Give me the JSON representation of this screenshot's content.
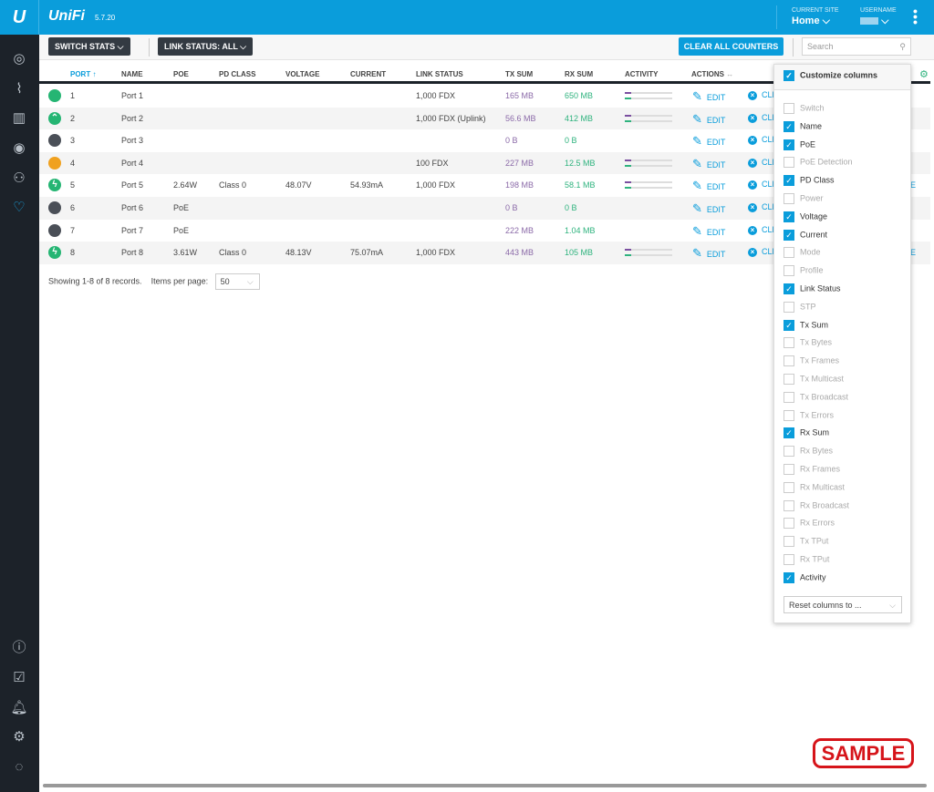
{
  "header": {
    "brand": "UniFi",
    "version": "5.7.20",
    "site_label": "CURRENT SITE",
    "site": "Home",
    "user_label": "USERNAME"
  },
  "sidebar": {
    "top": [
      "dashboard-icon",
      "statistics-icon",
      "map-icon",
      "devices-icon",
      "clients-icon",
      "insights-icon"
    ],
    "bottom": [
      "info-icon",
      "tasks-icon",
      "alerts-icon",
      "settings-icon",
      "chat-icon"
    ]
  },
  "toolbar": {
    "switch_stats": "SWITCH STATS",
    "link_status": "LINK STATUS: ALL",
    "clear_all": "CLEAR ALL COUNTERS",
    "search_placeholder": "Search"
  },
  "table": {
    "headers": {
      "port": "PORT",
      "name": "NAME",
      "poe": "POE",
      "pd_class": "PD CLASS",
      "voltage": "VOLTAGE",
      "current": "CURRENT",
      "link_status": "LINK STATUS",
      "tx_sum": "TX SUM",
      "rx_sum": "RX SUM",
      "activity": "ACTIVITY",
      "actions": "ACTIONS"
    },
    "edit_label": "EDIT",
    "clear_label": "CLE",
    "rows": [
      {
        "status": "connected",
        "color": "#25b573",
        "port": "1",
        "name": "Port 1",
        "poe": "",
        "pd_class": "",
        "voltage": "",
        "current": "",
        "link": "1,000 FDX",
        "tx": "165 MB",
        "rx": "650 MB",
        "activity": true
      },
      {
        "status": "uplink",
        "color": "#25b573",
        "port": "2",
        "name": "Port 2",
        "poe": "",
        "pd_class": "",
        "voltage": "",
        "current": "",
        "link": "1,000 FDX (Uplink)",
        "tx": "56.6 MB",
        "rx": "412 MB",
        "activity": true
      },
      {
        "status": "disconnected",
        "color": "#4a4f57",
        "port": "3",
        "name": "Port 3",
        "poe": "",
        "pd_class": "",
        "voltage": "",
        "current": "",
        "link": "",
        "tx": "0 B",
        "rx": "0 B",
        "activity": false
      },
      {
        "status": "100mbps",
        "color": "#f0a11f",
        "port": "4",
        "name": "Port 4",
        "poe": "",
        "pd_class": "",
        "voltage": "",
        "current": "",
        "link": "100 FDX",
        "tx": "227 MB",
        "rx": "12.5 MB",
        "activity": true
      },
      {
        "status": "poe",
        "color": "#25b573",
        "port": "5",
        "name": "Port 5",
        "poe": "2.64W",
        "pd_class": "Class 0",
        "voltage": "48.07V",
        "current": "54.93mA",
        "link": "1,000 FDX",
        "tx": "198 MB",
        "rx": "58.1 MB",
        "activity": true
      },
      {
        "status": "disconnected",
        "color": "#4a4f57",
        "port": "6",
        "name": "Port 6",
        "poe": "PoE",
        "pd_class": "",
        "voltage": "",
        "current": "",
        "link": "",
        "tx": "0 B",
        "rx": "0 B",
        "activity": false
      },
      {
        "status": "disconnected",
        "color": "#4a4f57",
        "port": "7",
        "name": "Port 7",
        "poe": "PoE",
        "pd_class": "",
        "voltage": "",
        "current": "",
        "link": "",
        "tx": "222 MB",
        "rx": "1.04 MB",
        "activity": false
      },
      {
        "status": "poe",
        "color": "#25b573",
        "port": "8",
        "name": "Port 8",
        "poe": "3.61W",
        "pd_class": "Class 0",
        "voltage": "48.13V",
        "current": "75.07mA",
        "link": "1,000 FDX",
        "tx": "443 MB",
        "rx": "105 MB",
        "activity": true
      }
    ]
  },
  "footer": {
    "showing": "Showing 1-8 of 8 records.",
    "per_page_label": "Items per page:",
    "per_page": "50"
  },
  "columns_panel": {
    "title": "Customize columns",
    "reset": "Reset columns to ...",
    "items": [
      {
        "label": "Switch",
        "checked": false
      },
      {
        "label": "Name",
        "checked": true
      },
      {
        "label": "PoE",
        "checked": true
      },
      {
        "label": "PoE Detection",
        "checked": false
      },
      {
        "label": "PD Class",
        "checked": true
      },
      {
        "label": "Power",
        "checked": false
      },
      {
        "label": "Voltage",
        "checked": true
      },
      {
        "label": "Current",
        "checked": true
      },
      {
        "label": "Mode",
        "checked": false
      },
      {
        "label": "Profile",
        "checked": false
      },
      {
        "label": "Link Status",
        "checked": true
      },
      {
        "label": "STP",
        "checked": false
      },
      {
        "label": "Tx Sum",
        "checked": true
      },
      {
        "label": "Tx Bytes",
        "checked": false
      },
      {
        "label": "Tx Frames",
        "checked": false
      },
      {
        "label": "Tx Multicast",
        "checked": false
      },
      {
        "label": "Tx Broadcast",
        "checked": false
      },
      {
        "label": "Tx Errors",
        "checked": false
      },
      {
        "label": "Rx Sum",
        "checked": true
      },
      {
        "label": "Rx Bytes",
        "checked": false
      },
      {
        "label": "Rx Frames",
        "checked": false
      },
      {
        "label": "Rx Multicast",
        "checked": false
      },
      {
        "label": "Rx Broadcast",
        "checked": false
      },
      {
        "label": "Rx Errors",
        "checked": false
      },
      {
        "label": "Tx TPut",
        "checked": false
      },
      {
        "label": "Rx TPut",
        "checked": false
      },
      {
        "label": "Activity",
        "checked": true
      }
    ]
  },
  "watermark": "SAMPLE"
}
